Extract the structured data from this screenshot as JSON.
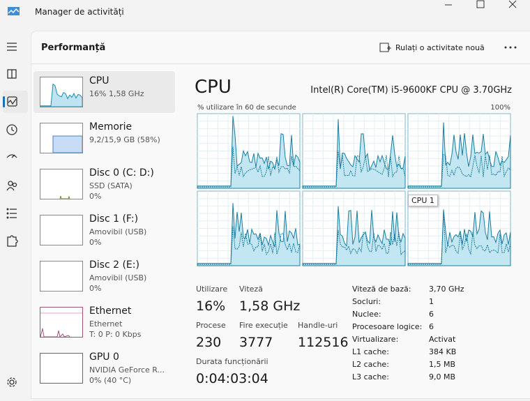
{
  "window": {
    "title": "Manager de activități"
  },
  "header": {
    "title": "Performanță",
    "action": "Rulați o activitate nouă"
  },
  "devices": [
    {
      "name": "CPU",
      "lines": [
        "16% 1,58 GHz"
      ]
    },
    {
      "name": "Memorie",
      "lines": [
        "9,2/15,9 GB (58%)"
      ]
    },
    {
      "name": "Disc 0 (C: D:)",
      "lines": [
        "SSD (SATA)",
        "0%"
      ]
    },
    {
      "name": "Disc 1 (F:)",
      "lines": [
        "Amovibil (USB)",
        "0%"
      ]
    },
    {
      "name": "Disc 2 (E:)",
      "lines": [
        "Amovibil (USB)",
        "0%"
      ]
    },
    {
      "name": "Ethernet",
      "lines": [
        "Ethernet",
        "T: 0 P: 0 Kbps"
      ]
    },
    {
      "name": "GPU 0",
      "lines": [
        "NVIDIA GeForce R...",
        "0% (40 °C)"
      ]
    }
  ],
  "panel": {
    "title": "CPU",
    "model": "Intel(R) Core(TM) i5-9600KF CPU @ 3.70GHz",
    "graph_label": "% utilizare în 60 de secunde",
    "graph_max": "100%",
    "tooltip": "CPU 1",
    "stats": [
      {
        "label": "Utilizare",
        "value": "16%"
      },
      {
        "label": "Viteză",
        "value": "1,58 GHz"
      },
      {
        "label": "Procese",
        "value": "230"
      },
      {
        "label": "Fire execuție",
        "value": "3777"
      },
      {
        "label": "Handle-uri",
        "value": "112516"
      },
      {
        "label": "Durata funcționării",
        "value": "0:04:03:04"
      }
    ],
    "specs": [
      {
        "label": "Viteză de bază:",
        "value": "3,70 GHz"
      },
      {
        "label": "Socluri:",
        "value": "1"
      },
      {
        "label": "Nuclee:",
        "value": "6"
      },
      {
        "label": "Procesoare logice:",
        "value": "6"
      },
      {
        "label": "Virtualizare:",
        "value": "Activat"
      },
      {
        "label": "L1 cache:",
        "value": "384 KB"
      },
      {
        "label": "L2 cache:",
        "value": "1,5 MB"
      },
      {
        "label": "L3 cache:",
        "value": "9,0 MB"
      }
    ]
  }
}
